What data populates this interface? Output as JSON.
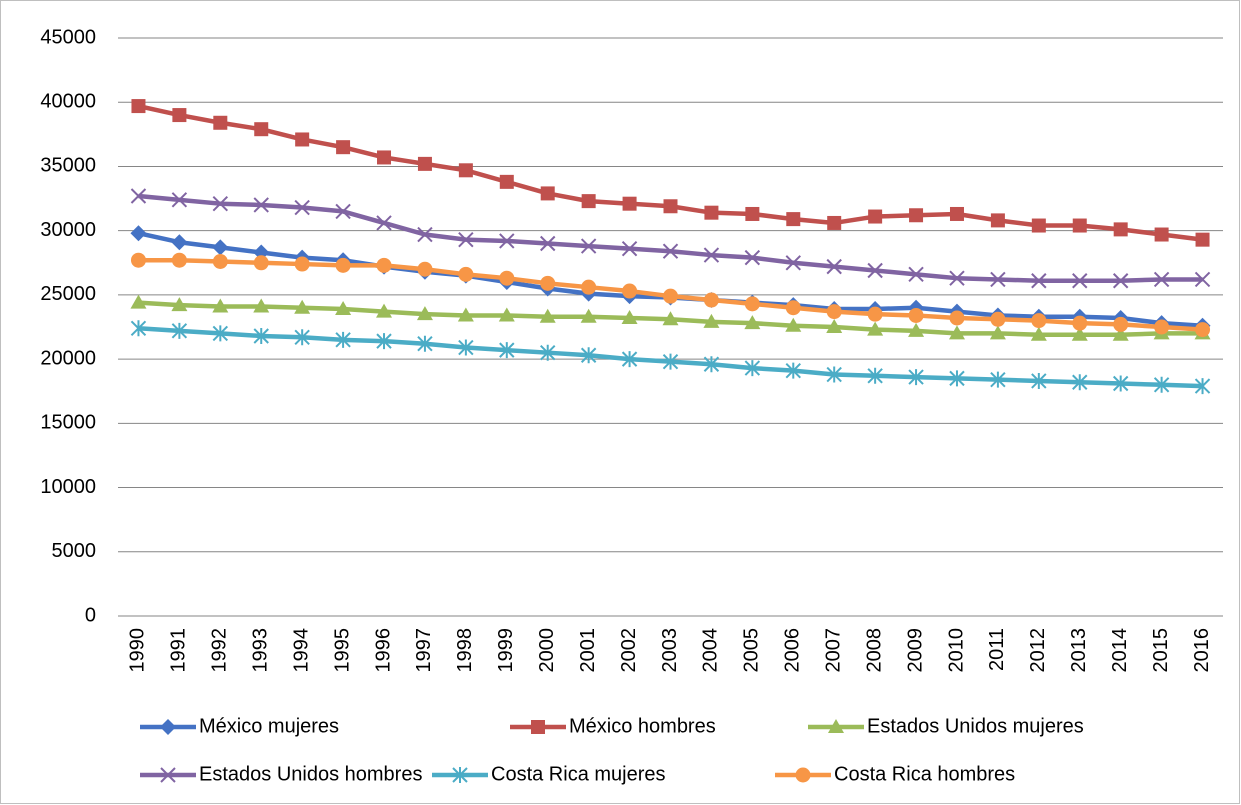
{
  "chart_data": {
    "type": "line",
    "categories": [
      "1990",
      "1991",
      "1992",
      "1993",
      "1994",
      "1995",
      "1996",
      "1997",
      "1998",
      "1999",
      "2000",
      "2001",
      "2002",
      "2003",
      "2004",
      "2005",
      "2006",
      "2007",
      "2008",
      "2009",
      "2010",
      "2011",
      "2012",
      "2013",
      "2014",
      "2015",
      "2016"
    ],
    "series": [
      {
        "name": "México mujeres",
        "color": "#4472c4",
        "marker": "diamond",
        "values": [
          29800,
          29100,
          28700,
          28300,
          27900,
          27700,
          27200,
          26800,
          26500,
          26000,
          25500,
          25100,
          24900,
          24800,
          24600,
          24400,
          24200,
          23900,
          23900,
          24000,
          23700,
          23400,
          23300,
          23300,
          23200,
          22800,
          22600
        ]
      },
      {
        "name": "México hombres",
        "color": "#c0504d",
        "marker": "square",
        "values": [
          39700,
          39000,
          38400,
          37900,
          37100,
          36500,
          35700,
          35200,
          34700,
          33800,
          32900,
          32300,
          32100,
          31900,
          31400,
          31300,
          30900,
          30600,
          31100,
          31200,
          31300,
          30800,
          30400,
          30400,
          30100,
          29700,
          29300
        ]
      },
      {
        "name": "Estados Unidos mujeres",
        "color": "#9bbb59",
        "marker": "triangle",
        "values": [
          24400,
          24200,
          24100,
          24100,
          24000,
          23900,
          23700,
          23500,
          23400,
          23400,
          23300,
          23300,
          23200,
          23100,
          22900,
          22800,
          22600,
          22500,
          22300,
          22200,
          22000,
          22000,
          21900,
          21900,
          21900,
          22000,
          22000
        ]
      },
      {
        "name": "Estados Unidos hombres",
        "color": "#8064a2",
        "marker": "x",
        "values": [
          32700,
          32400,
          32100,
          32000,
          31800,
          31500,
          30600,
          29700,
          29300,
          29200,
          29000,
          28800,
          28600,
          28400,
          28100,
          27900,
          27500,
          27200,
          26900,
          26600,
          26300,
          26200,
          26100,
          26100,
          26100,
          26200,
          26200
        ]
      },
      {
        "name": "Costa Rica mujeres",
        "color": "#4bacc6",
        "marker": "star",
        "values": [
          22400,
          22200,
          22000,
          21800,
          21700,
          21500,
          21400,
          21200,
          20900,
          20700,
          20500,
          20300,
          20000,
          19800,
          19600,
          19300,
          19100,
          18800,
          18700,
          18600,
          18500,
          18400,
          18300,
          18200,
          18100,
          18000,
          17900
        ]
      },
      {
        "name": "Costa Rica hombres",
        "color": "#f79646",
        "marker": "circle",
        "values": [
          27700,
          27700,
          27600,
          27500,
          27400,
          27300,
          27300,
          27000,
          26600,
          26300,
          25900,
          25600,
          25300,
          24900,
          24600,
          24300,
          24000,
          23700,
          23500,
          23400,
          23200,
          23100,
          23000,
          22800,
          22700,
          22500,
          22300
        ]
      }
    ],
    "ylim": [
      0,
      45000
    ],
    "yticks": [
      0,
      5000,
      10000,
      15000,
      20000,
      25000,
      30000,
      35000,
      40000,
      45000
    ],
    "grid": true,
    "legend": "bottom"
  }
}
